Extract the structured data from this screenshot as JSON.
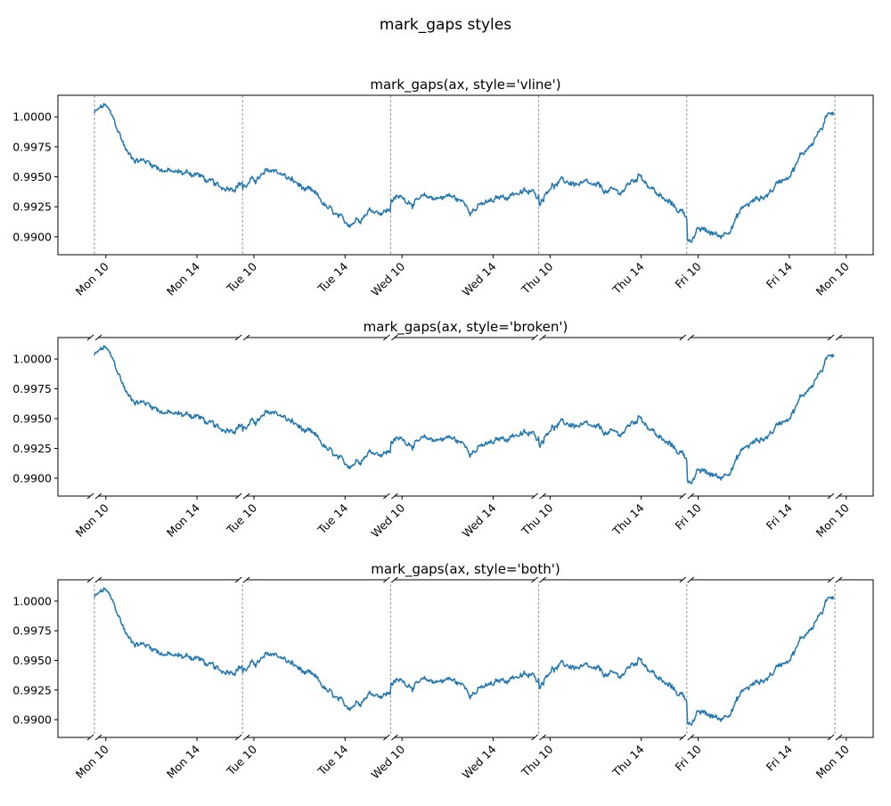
{
  "figure": {
    "suptitle": "mark_gaps styles"
  },
  "colors": {
    "series": "#1f77b4",
    "gap_marker": "#999999",
    "axes": "#000000",
    "background": "#ffffff"
  },
  "chart_data": [
    {
      "type": "line",
      "title": "mark_gaps(ax, style='vline')",
      "gap_style": "vline",
      "xlabel": "",
      "ylabel": "",
      "grid": false,
      "ylim": [
        0.9885,
        1.0018
      ],
      "yticks": [
        0.99,
        0.9925,
        0.995,
        0.9975,
        1.0
      ],
      "ytick_labels": [
        "0.9900",
        "0.9925",
        "0.9950",
        "0.9975",
        "1.0000"
      ],
      "xticks": [
        "Mon 10",
        "Mon 14",
        "Tue 10",
        "Tue 14",
        "Wed 10",
        "Wed 14",
        "Thu 10",
        "Thu 14",
        "Fri 10",
        "Fri 14",
        "Mon 10"
      ],
      "series": [
        {
          "x": [
            "Mon 09:30",
            "Mon 10:00",
            "Mon 11:00",
            "Mon 12:00",
            "Mon 13:00",
            "Mon 14:00",
            "Mon 15:00",
            "Mon 16:00",
            "Tue 09:30",
            "Tue 11:00",
            "Tue 12:00",
            "Tue 13:00",
            "Tue 14:00",
            "Tue 15:00",
            "Tue 16:00",
            "Wed 09:30",
            "Wed 11:00",
            "Wed 12:00",
            "Wed 13:00",
            "Wed 14:00",
            "Wed 15:00",
            "Wed 16:00",
            "Thu 09:30",
            "Thu 10:00",
            "Thu 11:00",
            "Thu 12:00",
            "Thu 13:00",
            "Thu 14:00",
            "Thu 15:00",
            "Thu 16:00",
            "Fri 09:30",
            "Fri 10:00",
            "Fri 11:00",
            "Fri 12:00",
            "Fri 13:00",
            "Fri 14:00",
            "Fri 15:00",
            "Fri 16:00"
          ],
          "values": [
            1.0003,
            1.0009,
            0.9968,
            0.9962,
            0.9953,
            0.9953,
            0.9938,
            0.9948,
            0.9943,
            0.9955,
            0.9942,
            0.9927,
            0.9907,
            0.9924,
            0.9923,
            0.9933,
            0.993,
            0.9935,
            0.9925,
            0.9928,
            0.9938,
            0.9934,
            0.9928,
            0.9945,
            0.9945,
            0.9938,
            0.9935,
            0.9952,
            0.993,
            0.9918,
            0.9897,
            0.9905,
            0.99,
            0.9925,
            0.9935,
            0.9955,
            0.998,
            1.0007
          ]
        }
      ]
    },
    {
      "type": "line",
      "title": "mark_gaps(ax, style='broken')",
      "gap_style": "broken",
      "xlabel": "",
      "ylabel": "",
      "grid": false,
      "ylim": [
        0.9885,
        1.0018
      ],
      "yticks": [
        0.99,
        0.9925,
        0.995,
        0.9975,
        1.0
      ],
      "ytick_labels": [
        "0.9900",
        "0.9925",
        "0.9950",
        "0.9975",
        "1.0000"
      ],
      "xticks": [
        "Mon 10",
        "Mon 14",
        "Tue 10",
        "Tue 14",
        "Wed 10",
        "Wed 14",
        "Thu 10",
        "Thu 14",
        "Fri 10",
        "Fri 14",
        "Mon 10"
      ],
      "series": [
        {
          "x": [
            "Mon 09:30",
            "Mon 10:00",
            "Mon 11:00",
            "Mon 12:00",
            "Mon 13:00",
            "Mon 14:00",
            "Mon 15:00",
            "Mon 16:00",
            "Tue 09:30",
            "Tue 11:00",
            "Tue 12:00",
            "Tue 13:00",
            "Tue 14:00",
            "Tue 15:00",
            "Tue 16:00",
            "Wed 09:30",
            "Wed 11:00",
            "Wed 12:00",
            "Wed 13:00",
            "Wed 14:00",
            "Wed 15:00",
            "Wed 16:00",
            "Thu 09:30",
            "Thu 10:00",
            "Thu 11:00",
            "Thu 12:00",
            "Thu 13:00",
            "Thu 14:00",
            "Thu 15:00",
            "Thu 16:00",
            "Fri 09:30",
            "Fri 10:00",
            "Fri 11:00",
            "Fri 12:00",
            "Fri 13:00",
            "Fri 14:00",
            "Fri 15:00",
            "Fri 16:00"
          ],
          "values": [
            1.0003,
            1.0009,
            0.9968,
            0.9962,
            0.9953,
            0.9953,
            0.9938,
            0.9948,
            0.9943,
            0.9955,
            0.9942,
            0.9927,
            0.9907,
            0.9924,
            0.9923,
            0.9933,
            0.993,
            0.9935,
            0.9925,
            0.9928,
            0.9938,
            0.9934,
            0.9928,
            0.9945,
            0.9945,
            0.9938,
            0.9935,
            0.9952,
            0.993,
            0.9918,
            0.9897,
            0.9905,
            0.99,
            0.9925,
            0.9935,
            0.9955,
            0.998,
            1.0007
          ]
        }
      ]
    },
    {
      "type": "line",
      "title": "mark_gaps(ax, style='both')",
      "gap_style": "both",
      "xlabel": "",
      "ylabel": "",
      "grid": false,
      "ylim": [
        0.9885,
        1.0018
      ],
      "yticks": [
        0.99,
        0.9925,
        0.995,
        0.9975,
        1.0
      ],
      "ytick_labels": [
        "0.9900",
        "0.9925",
        "0.9950",
        "0.9975",
        "1.0000"
      ],
      "xticks": [
        "Mon 10",
        "Mon 14",
        "Tue 10",
        "Tue 14",
        "Wed 10",
        "Wed 14",
        "Thu 10",
        "Thu 14",
        "Fri 10",
        "Fri 14",
        "Mon 10"
      ],
      "series": [
        {
          "x": [
            "Mon 09:30",
            "Mon 10:00",
            "Mon 11:00",
            "Mon 12:00",
            "Mon 13:00",
            "Mon 14:00",
            "Mon 15:00",
            "Mon 16:00",
            "Tue 09:30",
            "Tue 11:00",
            "Tue 12:00",
            "Tue 13:00",
            "Tue 14:00",
            "Tue 15:00",
            "Tue 16:00",
            "Wed 09:30",
            "Wed 11:00",
            "Wed 12:00",
            "Wed 13:00",
            "Wed 14:00",
            "Wed 15:00",
            "Wed 16:00",
            "Thu 09:30",
            "Thu 10:00",
            "Thu 11:00",
            "Thu 12:00",
            "Thu 13:00",
            "Thu 14:00",
            "Thu 15:00",
            "Thu 16:00",
            "Fri 09:30",
            "Fri 10:00",
            "Fri 11:00",
            "Fri 12:00",
            "Fri 13:00",
            "Fri 14:00",
            "Fri 15:00",
            "Fri 16:00"
          ],
          "values": [
            1.0003,
            1.0009,
            0.9968,
            0.9962,
            0.9953,
            0.9953,
            0.9938,
            0.9948,
            0.9943,
            0.9955,
            0.9942,
            0.9927,
            0.9907,
            0.9924,
            0.9923,
            0.9933,
            0.993,
            0.9935,
            0.9925,
            0.9928,
            0.9938,
            0.9934,
            0.9928,
            0.9945,
            0.9945,
            0.9938,
            0.9935,
            0.9952,
            0.993,
            0.9918,
            0.9897,
            0.9905,
            0.99,
            0.9925,
            0.9935,
            0.9955,
            0.998,
            1.0007
          ]
        }
      ]
    }
  ]
}
